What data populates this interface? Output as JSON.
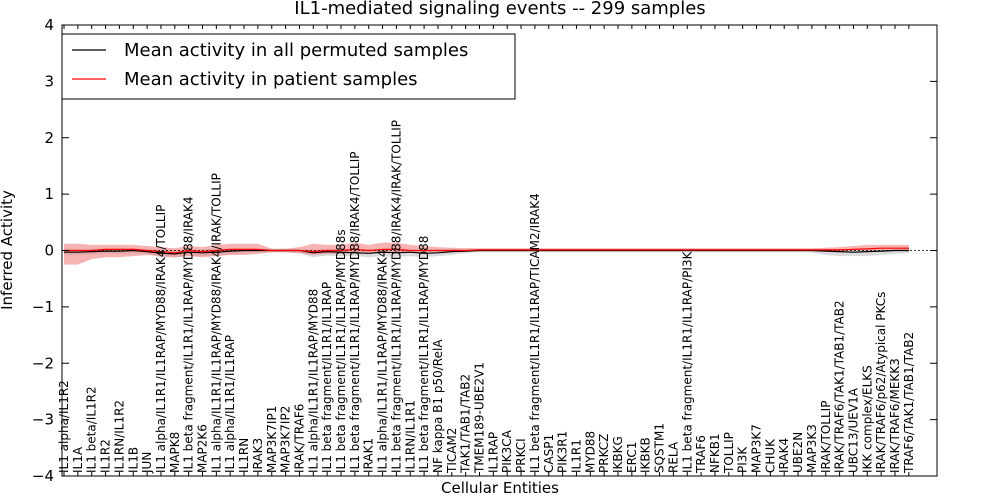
{
  "chart_data": {
    "type": "line",
    "title": "IL1-mediated signaling events -- 299 samples",
    "xlabel": "Cellular Entities",
    "ylabel": "Inferred Activity",
    "ylim": [
      -4,
      4
    ],
    "yticks": [
      -4,
      -3,
      -2,
      -1,
      0,
      1,
      2,
      3,
      4
    ],
    "ytick_labels": [
      "−4",
      "−3",
      "−2",
      "−1",
      "0",
      "1",
      "2",
      "3",
      "4"
    ],
    "legend_location": "top-left",
    "categories": [
      "IL1 alpha/IL1R2",
      "IL1A",
      "IL1 beta/IL1R2",
      "IL1R2",
      "IL1RN/IL1R2",
      "IL1B",
      "JUN",
      "IL1 alpha/IL1R1/IL1RAP/MYD88/IRAK4/TOLLIP",
      "MAPK8",
      "IL1 beta fragment/IL1R1/IL1RAP/MYD88/IRAK4",
      "MAP2K6",
      "IL1 alpha/IL1R1/IL1RAP/MYD88/IRAK4/IRAK/TOLLIP",
      "IL1 alpha/IL1R1/IL1RAP",
      "IL1RN",
      "IRAK3",
      "MAP3K7IP1",
      "MAP3K7IP2",
      "IRAK/TRAF6",
      "IL1 alpha/IL1R1/IL1RAP/MYD88",
      "IL1 beta fragment/IL1R1/IL1RAP",
      "IL1 beta fragment/IL1R1/IL1RAP/MYD88s",
      "IL1 beta fragment/IL1R1/IL1RAP/MYD88/IRAK4/TOLLIP",
      "IRAK1",
      "IL1 alpha/IL1R1/IL1RAP/MYD88/IRAK4",
      "IL1 beta fragment/IL1R1/IL1RAP/MYD88/IRAK4/IRAK/TOLLIP",
      "IL1RN/IL1R1",
      "IL1 beta fragment/IL1R1/IL1RAP/MYD88",
      "NF kappa B1 p50/RelA",
      "TICAM2",
      "TAK1/TAB1/TAB2",
      "TMEM189-UBE2V1",
      "IL1RAP",
      "PIK3CA",
      "PRKCI",
      "IL1 beta fragment/IL1R1/IL1RAP/TICAM2/IRAK4",
      "CASP1",
      "PIK3R1",
      "IL1R1",
      "MYD88",
      "PRKCZ",
      "IKBKG",
      "ERC1",
      "IKBKB",
      "SQSTM1",
      "RELA",
      "IL1 beta fragment/IL1R1/IL1RAP/PI3K",
      "TRAF6",
      "NFKB1",
      "TOLLIP",
      "PI3K",
      "MAP3K7",
      "CHUK",
      "IRAK4",
      "UBE2N",
      "MAP3K3",
      "IRAK/TOLLIP",
      "IRAK/TRAF6/TAK1/TAB1/TAB2",
      "UBC13/UEV1A",
      "IKK complex/ELKS",
      "IRAK/TRAF6/p62/Atypical PKCs",
      "IRAK/TRAF6/MEKK3",
      "TRAF6/TAK1/TAB1/TAB2"
    ],
    "series": [
      {
        "name": "Mean activity in all permuted samples",
        "color": "#000000",
        "band_color": "#b0b0b0",
        "values": [
          -0.03,
          -0.03,
          -0.02,
          -0.01,
          -0.01,
          0.0,
          -0.02,
          -0.05,
          -0.06,
          -0.03,
          -0.04,
          -0.03,
          -0.01,
          0.0,
          0.0,
          0.0,
          0.0,
          0.0,
          -0.04,
          -0.02,
          -0.03,
          -0.04,
          -0.05,
          -0.03,
          -0.04,
          -0.03,
          -0.05,
          -0.04,
          -0.02,
          -0.01,
          0.0,
          0.0,
          0.0,
          0.0,
          0.0,
          0.0,
          0.0,
          0.0,
          0.0,
          0.0,
          0.0,
          0.0,
          0.0,
          0.0,
          0.0,
          0.0,
          0.0,
          0.0,
          0.0,
          0.0,
          0.0,
          0.0,
          0.0,
          0.0,
          0.0,
          -0.01,
          -0.02,
          -0.03,
          -0.02,
          -0.01,
          0.0,
          0.0
        ],
        "lower": [
          -0.08,
          -0.08,
          -0.07,
          -0.06,
          -0.06,
          -0.05,
          -0.06,
          -0.12,
          -0.13,
          -0.09,
          -0.1,
          -0.09,
          -0.06,
          -0.04,
          -0.03,
          -0.03,
          -0.03,
          -0.05,
          -0.12,
          -0.09,
          -0.1,
          -0.1,
          -0.12,
          -0.1,
          -0.11,
          -0.1,
          -0.12,
          -0.1,
          -0.08,
          -0.05,
          -0.03,
          -0.03,
          -0.03,
          -0.03,
          -0.03,
          -0.03,
          -0.03,
          -0.03,
          -0.03,
          -0.03,
          -0.03,
          -0.03,
          -0.03,
          -0.03,
          -0.03,
          -0.03,
          -0.03,
          -0.03,
          -0.03,
          -0.03,
          -0.03,
          -0.03,
          -0.03,
          -0.03,
          -0.04,
          -0.08,
          -0.1,
          -0.1,
          -0.1,
          -0.08,
          -0.06,
          -0.05
        ],
        "upper": [
          0.03,
          0.03,
          0.03,
          0.04,
          0.04,
          0.04,
          0.03,
          0.02,
          0.01,
          0.03,
          0.02,
          0.03,
          0.04,
          0.04,
          0.03,
          0.03,
          0.03,
          0.03,
          0.02,
          0.03,
          0.02,
          0.02,
          0.01,
          0.02,
          0.02,
          0.02,
          0.01,
          0.02,
          0.03,
          0.03,
          0.03,
          0.03,
          0.03,
          0.03,
          0.03,
          0.03,
          0.03,
          0.03,
          0.03,
          0.03,
          0.03,
          0.03,
          0.03,
          0.03,
          0.03,
          0.03,
          0.03,
          0.03,
          0.03,
          0.03,
          0.03,
          0.03,
          0.03,
          0.03,
          0.03,
          0.03,
          0.02,
          0.02,
          0.02,
          0.03,
          0.03,
          0.03
        ]
      },
      {
        "name": "Mean activity in patient samples",
        "color": "#ff0000",
        "band_color": "#f08080",
        "values": [
          0.0,
          0.0,
          0.0,
          0.02,
          0.02,
          0.02,
          0.0,
          -0.02,
          -0.04,
          0.0,
          -0.02,
          0.0,
          0.02,
          0.02,
          0.02,
          0.0,
          0.0,
          0.0,
          -0.02,
          0.0,
          0.0,
          0.02,
          0.0,
          0.02,
          0.02,
          0.0,
          0.0,
          0.0,
          0.0,
          0.0,
          0.01,
          0.01,
          0.01,
          0.01,
          0.01,
          0.01,
          0.01,
          0.01,
          0.01,
          0.01,
          0.01,
          0.01,
          0.01,
          0.01,
          0.01,
          0.01,
          0.01,
          0.01,
          0.01,
          0.01,
          0.01,
          0.01,
          0.01,
          0.01,
          0.01,
          0.01,
          0.01,
          0.02,
          0.03,
          0.04,
          0.04,
          0.04
        ],
        "lower": [
          -0.25,
          -0.25,
          -0.15,
          -0.12,
          -0.12,
          -0.1,
          -0.08,
          -0.1,
          -0.12,
          -0.1,
          -0.12,
          -0.1,
          -0.08,
          -0.08,
          -0.06,
          -0.03,
          -0.03,
          -0.05,
          -0.08,
          -0.06,
          -0.06,
          -0.05,
          -0.05,
          -0.04,
          -0.04,
          -0.04,
          -0.03,
          -0.03,
          -0.02,
          -0.02,
          -0.01,
          -0.01,
          -0.01,
          -0.01,
          -0.01,
          -0.01,
          -0.01,
          -0.01,
          -0.01,
          -0.01,
          -0.01,
          -0.01,
          -0.01,
          -0.01,
          -0.01,
          -0.01,
          -0.01,
          -0.01,
          -0.01,
          -0.01,
          -0.01,
          -0.01,
          -0.01,
          -0.01,
          -0.01,
          -0.01,
          -0.01,
          0.0,
          0.0,
          0.01,
          0.01,
          0.01
        ],
        "upper": [
          0.12,
          0.12,
          0.1,
          0.1,
          0.1,
          0.1,
          0.08,
          0.06,
          0.04,
          0.08,
          0.06,
          0.1,
          0.12,
          0.12,
          0.12,
          0.03,
          0.03,
          0.06,
          0.12,
          0.1,
          0.1,
          0.14,
          0.1,
          0.14,
          0.14,
          0.1,
          0.08,
          0.06,
          0.05,
          0.04,
          0.04,
          0.04,
          0.04,
          0.04,
          0.04,
          0.04,
          0.04,
          0.04,
          0.04,
          0.04,
          0.04,
          0.04,
          0.04,
          0.04,
          0.04,
          0.04,
          0.04,
          0.04,
          0.04,
          0.04,
          0.04,
          0.04,
          0.04,
          0.04,
          0.04,
          0.05,
          0.06,
          0.08,
          0.1,
          0.1,
          0.1,
          0.1
        ]
      }
    ]
  }
}
